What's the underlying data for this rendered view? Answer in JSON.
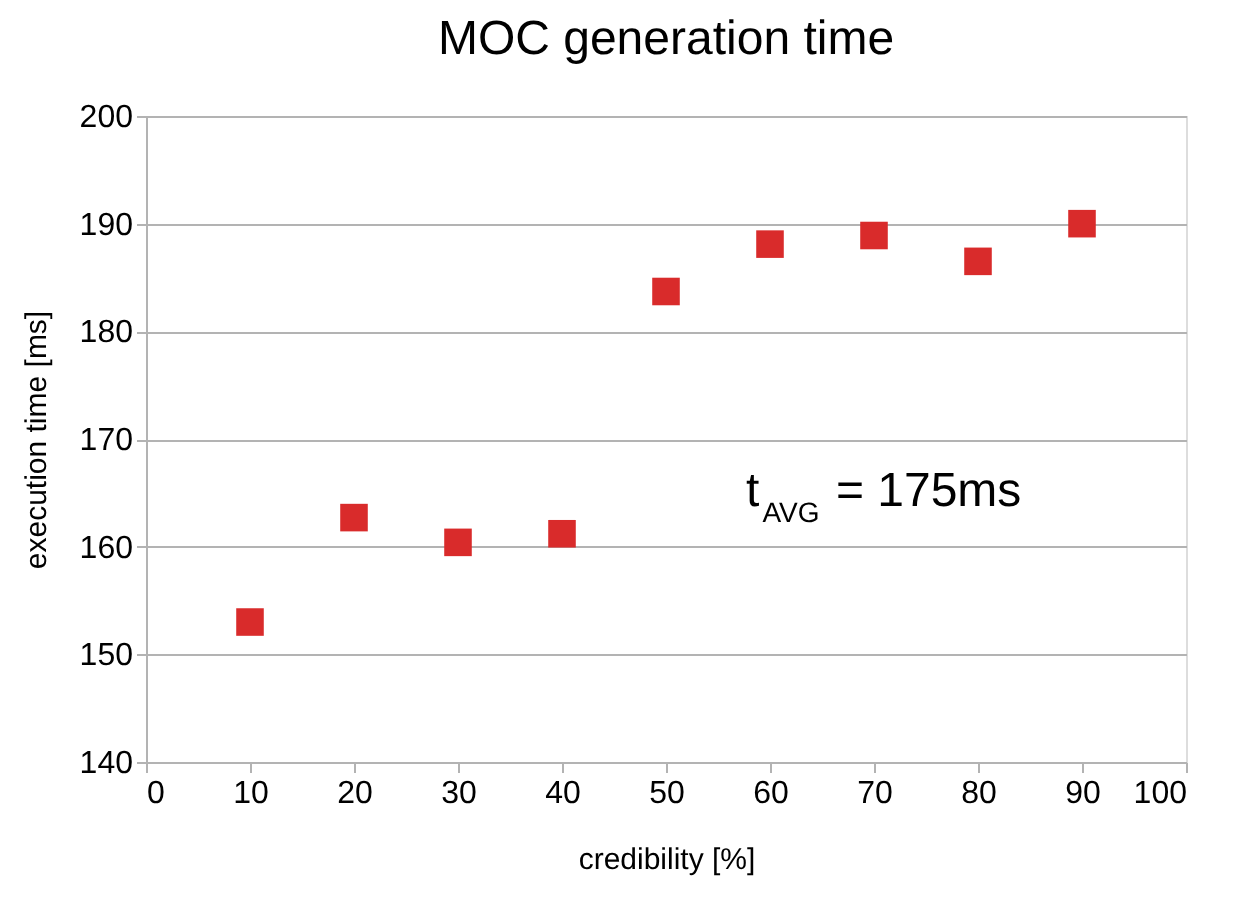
{
  "chart_data": {
    "type": "scatter",
    "title": "MOC generation time",
    "xlabel": "credibility [%]",
    "ylabel": "execution time [ms]",
    "x": [
      10,
      20,
      30,
      40,
      50,
      60,
      70,
      80,
      90
    ],
    "series": [
      {
        "color": "#d92b2b",
        "values": [
          153.0,
          162.7,
          160.4,
          161.2,
          183.7,
          188.1,
          188.9,
          186.5,
          190.0
        ]
      }
    ],
    "xlim": [
      0,
      100
    ],
    "xticks": [
      0,
      10,
      20,
      30,
      40,
      50,
      60,
      70,
      80,
      90,
      100
    ],
    "ylim": [
      140,
      200
    ],
    "yticks": [
      140,
      150,
      160,
      170,
      180,
      190,
      200
    ],
    "grid": "y",
    "marker": "square",
    "annotations": [
      "t$_{AVG}$ = 175ms"
    ]
  }
}
